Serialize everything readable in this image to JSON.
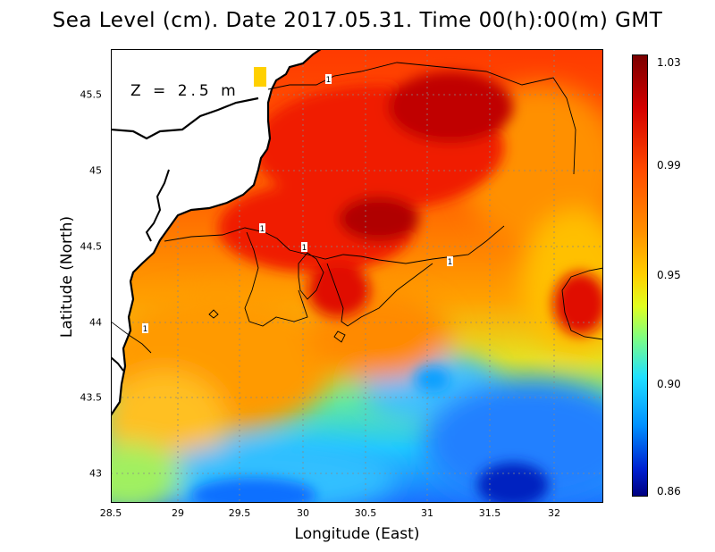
{
  "title": "Sea Level (cm). Date 2017.05.31. Time 00(h):00(m) GMT",
  "depth_label": "Z = 2.5 m",
  "x_axis": {
    "label": "Longitude (East)",
    "ticks": [
      "28.5",
      "29",
      "29.5",
      "30",
      "30.5",
      "31",
      "31.5",
      "32"
    ]
  },
  "y_axis": {
    "label": "Latitude (North)",
    "ticks": [
      "43",
      "43.5",
      "44",
      "44.5",
      "45",
      "45.5"
    ]
  },
  "colorbar": {
    "labels": [
      "1.03",
      "0.99",
      "0.95",
      "0.90",
      "0.86"
    ]
  },
  "contour_labels": [
    "1",
    "1",
    "1",
    "1",
    "1"
  ],
  "colors": {
    "land": "#ffffff",
    "coastline": "#000000",
    "high": "#a00000",
    "low": "#0010a0"
  }
}
